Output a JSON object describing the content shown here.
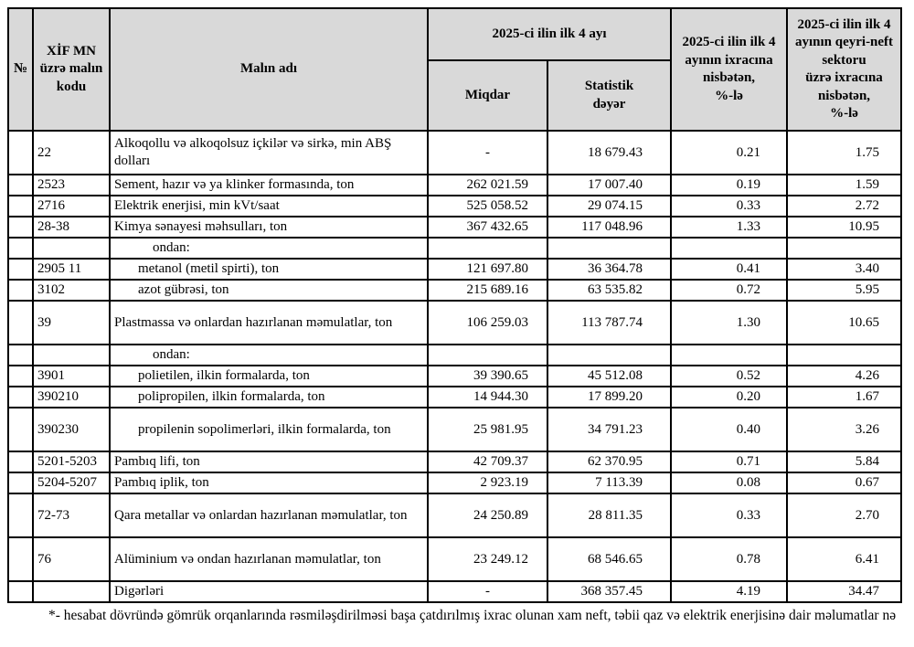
{
  "table": {
    "headers": {
      "no": "№",
      "code": "XİF MN\nüzrə malın\nkodu",
      "name": "Malın adı",
      "period": "2025-ci ilin ilk 4 ayı",
      "quantity": "Miqdar",
      "stat_value": "Statistik\ndəyər",
      "share_exports": "2025-ci ilin ilk 4\nayının ixracına\nnisbətən,\n%-lə",
      "share_nonoil_exports": "2025-ci ilin ilk 4\nayının qeyri-neft\nsektoru\nüzrə ixracına\nnisbətən,\n%-lə"
    },
    "rows": [
      {
        "no": "",
        "code": "22",
        "name": "Alkoqollu və alkoqolsuz içkilər və sirkə, min ABŞ dolları",
        "qty": "-",
        "value": "18 679.43",
        "share_total": "0.21",
        "share_nonoil": "1.75",
        "kind": "item",
        "tall": true
      },
      {
        "no": "",
        "code": "2523",
        "name": "Sement, hazır və ya klinker formasında, ton",
        "qty": "262 021.59",
        "value": "17 007.40",
        "share_total": "0.19",
        "share_nonoil": "1.59",
        "kind": "item",
        "tall": false
      },
      {
        "no": "",
        "code": "2716",
        "name": "Elektrik enerjisi, min kVt/saat",
        "qty": "525 058.52",
        "value": "29 074.15",
        "share_total": "0.33",
        "share_nonoil": "2.72",
        "kind": "item",
        "tall": false
      },
      {
        "no": "",
        "code": "28-38",
        "name": "Kimya sənayesi məhsulları, ton",
        "qty": "367 432.65",
        "value": "117 048.96",
        "share_total": "1.33",
        "share_nonoil": "10.95",
        "kind": "item",
        "tall": false
      },
      {
        "no": "",
        "code": "",
        "name": "ondan:",
        "qty": "",
        "value": "",
        "share_total": "",
        "share_nonoil": "",
        "kind": "group-label",
        "tall": false
      },
      {
        "no": "",
        "code": "2905 11",
        "name": "metanol (metil spirti), ton",
        "qty": "121 697.80",
        "value": "36 364.78",
        "share_total": "0.41",
        "share_nonoil": "3.40",
        "kind": "sub-item",
        "tall": false
      },
      {
        "no": "",
        "code": "3102",
        "name": "azot gübrəsi, ton",
        "qty": "215 689.16",
        "value": "63 535.82",
        "share_total": "0.72",
        "share_nonoil": "5.95",
        "kind": "sub-item",
        "tall": false
      },
      {
        "no": "",
        "code": "39",
        "name": "Plastmassa və onlardan hazırlanan məmulatlar, ton",
        "qty": "106 259.03",
        "value": "113 787.74",
        "share_total": "1.30",
        "share_nonoil": "10.65",
        "kind": "item",
        "tall": true
      },
      {
        "no": "",
        "code": "",
        "name": "ondan:",
        "qty": "",
        "value": "",
        "share_total": "",
        "share_nonoil": "",
        "kind": "group-label",
        "tall": false
      },
      {
        "no": "",
        "code": "3901",
        "name": "polietilen, ilkin formalarda, ton",
        "qty": "39 390.65",
        "value": "45 512.08",
        "share_total": "0.52",
        "share_nonoil": "4.26",
        "kind": "sub-item",
        "tall": false
      },
      {
        "no": "",
        "code": "390210",
        "name": "polipropilen, ilkin formalarda, ton",
        "qty": "14 944.30",
        "value": "17 899.20",
        "share_total": "0.20",
        "share_nonoil": "1.67",
        "kind": "sub-item",
        "tall": false
      },
      {
        "no": "",
        "code": "390230",
        "name": "propilenin sopolimerləri, ilkin formalarda, ton",
        "qty": "25 981.95",
        "value": "34 791.23",
        "share_total": "0.40",
        "share_nonoil": "3.26",
        "kind": "sub-item",
        "tall": true
      },
      {
        "no": "",
        "code": "5201-5203",
        "name": "Pambıq lifi, ton",
        "qty": "42 709.37",
        "value": "62 370.95",
        "share_total": "0.71",
        "share_nonoil": "5.84",
        "kind": "item",
        "tall": false
      },
      {
        "no": "",
        "code": "5204-5207",
        "name": "Pambıq iplik, ton",
        "qty": "2 923.19",
        "value": "7 113.39",
        "share_total": "0.08",
        "share_nonoil": "0.67",
        "kind": "item",
        "tall": false
      },
      {
        "no": "",
        "code": "72-73",
        "name": "Qara metallar və onlardan hazırlanan məmulatlar, ton",
        "qty": "24 250.89",
        "value": "28 811.35",
        "share_total": "0.33",
        "share_nonoil": "2.70",
        "kind": "item",
        "tall": true
      },
      {
        "no": "",
        "code": "76",
        "name": "Alüminium və ondan hazırlanan məmulatlar, ton",
        "qty": "23 249.12",
        "value": "68 546.65",
        "share_total": "0.78",
        "share_nonoil": "6.41",
        "kind": "item",
        "tall": true
      },
      {
        "no": "",
        "code": "",
        "name": "Digərləri",
        "qty": "-",
        "value": "368 357.45",
        "share_total": "4.19",
        "share_nonoil": "34.47",
        "kind": "item",
        "tall": false
      }
    ]
  },
  "document": {
    "footnote": "*- hesabat dövründə gömrük orqanlarında rəsmiləşdirilməsi başa çatdırılmış ixrac olunan xam neft, təbii qaz və elektrik enerjisinə dair məlumatlar nə"
  }
}
